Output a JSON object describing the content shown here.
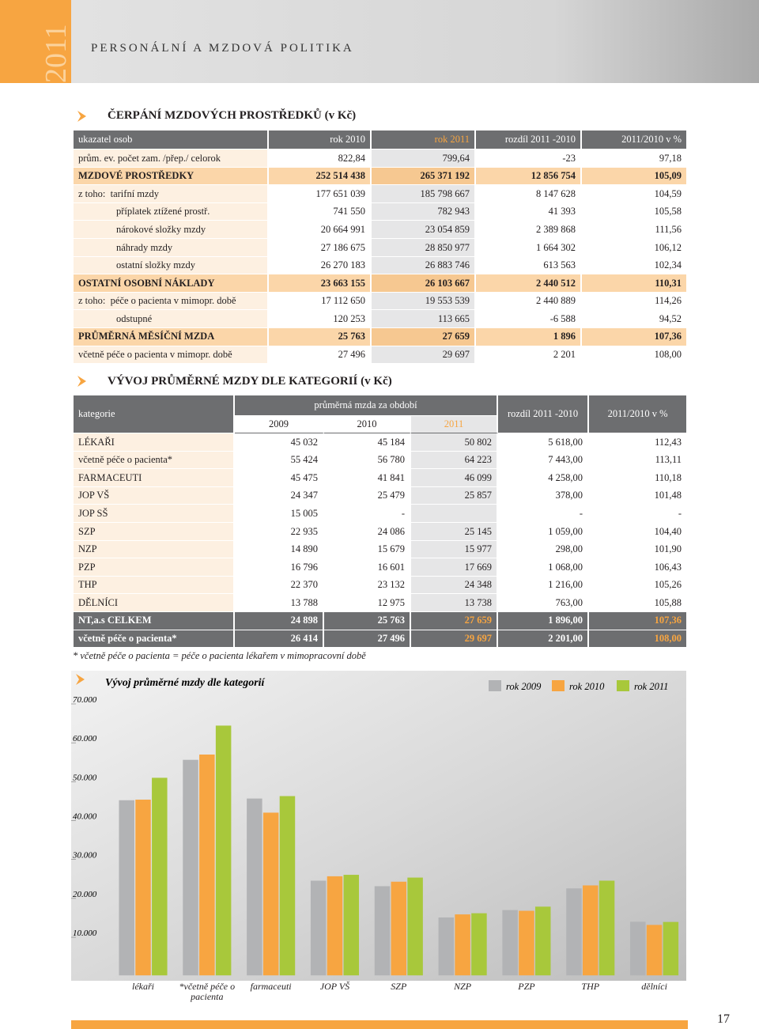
{
  "header": {
    "year": "2011",
    "title": "PERSONÁLNÍ A MZDOVÁ POLITIKA"
  },
  "section1": {
    "title": "ČERPÁNÍ MZDOVÝCH PROSTŘEDKŮ (v Kč)",
    "columns": [
      "ukazatel osob",
      "rok 2010",
      "rok 2011",
      "rozdíl 2011 -2010",
      "2011/2010 v %"
    ],
    "rows": [
      [
        "prům. ev. počet zam. /přep./ celorok",
        "822,84",
        "799,64",
        "-23",
        "97,18"
      ],
      [
        "MZDOVÉ PROSTŘEDKY",
        "252 514 438",
        "265 371 192",
        "12 856 754",
        "105,09"
      ],
      [
        "z toho:  tarifní mzdy",
        "177 651 039",
        "185 798 667",
        "8 147 628",
        "104,59"
      ],
      [
        "příplatek ztížené prostř.",
        "741 550",
        "782 943",
        "41 393",
        "105,58"
      ],
      [
        "nárokové složky mzdy",
        "20 664 991",
        "23 054 859",
        "2 389 868",
        "111,56"
      ],
      [
        "náhrady mzdy",
        "27 186 675",
        "28 850 977",
        "1 664 302",
        "106,12"
      ],
      [
        "ostatní složky mzdy",
        "26 270 183",
        "26 883 746",
        "613 563",
        "102,34"
      ],
      [
        "OSTATNÍ OSOBNÍ NÁKLADY",
        "23 663 155",
        "26 103 667",
        "2 440 512",
        "110,31"
      ],
      [
        "z toho:  péče o pacienta v mimopr. době",
        "17 112 650",
        "19 553 539",
        "2 440 889",
        "114,26"
      ],
      [
        "odstupné",
        "120 253",
        "113 665",
        "-6 588",
        "94,52"
      ],
      [
        "PRŮMĚRNÁ MĚSÍČNÍ MZDA",
        "25 763",
        "27 659",
        "1 896",
        "107,36"
      ],
      [
        "včetně péče o pacienta v mimopr. době",
        "27 496",
        "29 697",
        "2 201",
        "108,00"
      ]
    ]
  },
  "section2": {
    "title": "VÝVOJ PRŮMĚRNÉ MZDY DLE KATEGORIÍ (v Kč)",
    "header": {
      "category": "kategorie",
      "period": "průměrná mzda za období",
      "years": [
        "2009",
        "2010",
        "2011"
      ],
      "diff": "rozdíl 2011 -2010",
      "ratio": "2011/2010 v %"
    },
    "rows": [
      [
        "LÉKAŘI",
        "45 032",
        "45 184",
        "50 802",
        "5 618,00",
        "112,43"
      ],
      [
        "včetně péče o pacienta*",
        "55 424",
        "56 780",
        "64 223",
        "7 443,00",
        "113,11"
      ],
      [
        "FARMACEUTI",
        "45 475",
        "41 841",
        "46 099",
        "4 258,00",
        "110,18"
      ],
      [
        "JOP VŠ",
        "24 347",
        "25 479",
        "25 857",
        "378,00",
        "101,48"
      ],
      [
        "JOP SŠ",
        "15 005",
        "-",
        null,
        "-",
        "-"
      ],
      [
        "SZP",
        "22 935",
        "24 086",
        "25 145",
        "1 059,00",
        "104,40"
      ],
      [
        "NZP",
        "14 890",
        "15 679",
        "15 977",
        "298,00",
        "101,90"
      ],
      [
        "PZP",
        "16 796",
        "16 601",
        "17 669",
        "1 068,00",
        "106,43"
      ],
      [
        "THP",
        "22 370",
        "23 132",
        "24 348",
        "1 216,00",
        "105,26"
      ],
      [
        "DĚLNÍCI",
        "13 788",
        "12 975",
        "13 738",
        "763,00",
        "105,88"
      ],
      [
        "NT,a.s CELKEM",
        "24 898",
        "25 763",
        "27 659",
        "1 896,00",
        "107,36"
      ],
      [
        "včetně péče o pacienta*",
        "26 414",
        "27 496",
        "29 697",
        "2 201,00",
        "108,00"
      ]
    ],
    "footnote": "* včetně péče o pacienta = péče o pacienta lékařem v mimopracovní době"
  },
  "chart_data": {
    "type": "bar",
    "title": "Vývoj průměrné mzdy dle kategorií",
    "categories": [
      "lékaři",
      "*včetně péče o pacienta",
      "farmaceuti",
      "JOP VŠ",
      "SZP",
      "NZP",
      "PZP",
      "THP",
      "dělníci"
    ],
    "series": [
      {
        "name": "rok 2009",
        "color": "#b2b3b5",
        "values": [
          45032,
          55424,
          45475,
          24347,
          22935,
          14890,
          16796,
          22370,
          13788
        ]
      },
      {
        "name": "rok 2010",
        "color": "#f7a541",
        "values": [
          45184,
          56780,
          41841,
          25479,
          24086,
          15679,
          16601,
          23132,
          12975
        ]
      },
      {
        "name": "rok 2011",
        "color": "#a8c83b",
        "values": [
          50802,
          64223,
          46099,
          25857,
          25145,
          15977,
          17669,
          24348,
          13738
        ]
      }
    ],
    "ylim": [
      0,
      70000
    ],
    "yticks": [
      {
        "value": 10000,
        "label": "10.000"
      },
      {
        "value": 20000,
        "label": "20.000"
      },
      {
        "value": 30000,
        "label": "30.000"
      },
      {
        "value": 40000,
        "label": "40.000"
      },
      {
        "value": 50000,
        "label": "50.000"
      },
      {
        "value": 60000,
        "label": "60.000"
      },
      {
        "value": 70000,
        "label": "70.000"
      }
    ]
  },
  "page_number": "17"
}
